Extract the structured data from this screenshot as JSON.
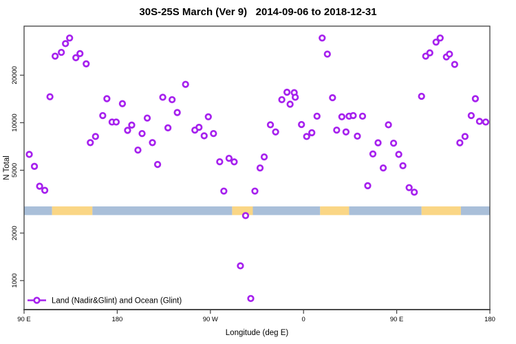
{
  "chart_data": {
    "type": "scatter",
    "title": "30S-25S March (Ver 9)   2014-09-06 to 2018-12-31",
    "xlabel": "Longitude (deg E)",
    "ylabel": "N Total",
    "grid": false,
    "x_scale": "linear",
    "y_scale": "log",
    "xlim": [
      90,
      540
    ],
    "ylim": [
      655,
      40900
    ],
    "x_ticks": [
      {
        "value": 90,
        "label": "90 E"
      },
      {
        "value": 180,
        "label": "180"
      },
      {
        "value": 270,
        "label": "90 W"
      },
      {
        "value": 360,
        "label": "0"
      },
      {
        "value": 450,
        "label": "90 E"
      },
      {
        "value": 540,
        "label": "180"
      }
    ],
    "y_ticks": [
      {
        "value": 1000,
        "label": "1000"
      },
      {
        "value": 2000,
        "label": "2000"
      },
      {
        "value": 5000,
        "label": "5000"
      },
      {
        "value": 10000,
        "label": "10000"
      },
      {
        "value": 20000,
        "label": "20000"
      }
    ],
    "legend": {
      "label": "Land (Nadir&Glint) and Ocean (Glint)",
      "position": "bottom-left",
      "marker": "open-circle-on-line"
    },
    "colors": {
      "point": "#A621EE",
      "ocean_band": "#A9BFD9",
      "land_band": "#FAD685",
      "axis": "#404040",
      "text": "#000000"
    },
    "land_ocean_band": {
      "description": "land/ocean strip along longitude",
      "y_top": 2950,
      "y_bottom": 2600,
      "segments": [
        {
          "from": 90,
          "to": 117,
          "type": "ocean"
        },
        {
          "from": 117,
          "to": 156,
          "type": "land"
        },
        {
          "from": 156,
          "to": 291,
          "type": "ocean"
        },
        {
          "from": 291,
          "to": 311,
          "type": "land"
        },
        {
          "from": 311,
          "to": 376,
          "type": "ocean"
        },
        {
          "from": 376,
          "to": 404,
          "type": "land"
        },
        {
          "from": 404,
          "to": 474,
          "type": "ocean"
        },
        {
          "from": 474,
          "to": 512,
          "type": "land"
        },
        {
          "from": 512,
          "to": 540,
          "type": "ocean"
        }
      ]
    },
    "series": [
      {
        "name": "Land (Nadir&Glint) and Ocean (Glint)",
        "marker": "open-circle",
        "points": [
          [
            120,
            26400
          ],
          [
            126,
            27900
          ],
          [
            130,
            31700
          ],
          [
            134,
            34400
          ],
          [
            140,
            25800
          ],
          [
            144,
            27400
          ],
          [
            150,
            23600
          ],
          [
            115,
            14600
          ],
          [
            166,
            11100
          ],
          [
            159,
            8180
          ],
          [
            154,
            7480
          ],
          [
            95,
            6300
          ],
          [
            100,
            5290
          ],
          [
            105,
            3960
          ],
          [
            110,
            3730
          ],
          [
            170,
            14200
          ],
          [
            185,
            13200
          ],
          [
            175,
            10100
          ],
          [
            179,
            10100
          ],
          [
            190,
            8950
          ],
          [
            194,
            9660
          ],
          [
            204,
            8540
          ],
          [
            209,
            10700
          ],
          [
            224,
            14500
          ],
          [
            233,
            14000
          ],
          [
            238,
            11600
          ],
          [
            246,
            17500
          ],
          [
            229,
            9280
          ],
          [
            214,
            7480
          ],
          [
            200,
            6710
          ],
          [
            219,
            5440
          ],
          [
            268,
            10900
          ],
          [
            255,
            8980
          ],
          [
            259,
            9350
          ],
          [
            264,
            8260
          ],
          [
            273,
            8540
          ],
          [
            279,
            5660
          ],
          [
            288,
            5950
          ],
          [
            293,
            5650
          ],
          [
            322,
            6070
          ],
          [
            318,
            5170
          ],
          [
            283,
            3690
          ],
          [
            313,
            3690
          ],
          [
            304,
            2580
          ],
          [
            299,
            1240
          ],
          [
            309,
            770
          ],
          [
            378,
            34400
          ],
          [
            383,
            27200
          ],
          [
            344,
            15600
          ],
          [
            351,
            15500
          ],
          [
            339,
            14000
          ],
          [
            352,
            14500
          ],
          [
            347,
            13100
          ],
          [
            388,
            14400
          ],
          [
            373,
            11000
          ],
          [
            397,
            10900
          ],
          [
            404,
            11000
          ],
          [
            358,
            9740
          ],
          [
            328,
            9700
          ],
          [
            333,
            8740
          ],
          [
            363,
            8180
          ],
          [
            368,
            8640
          ],
          [
            392,
            8980
          ],
          [
            401,
            8740
          ],
          [
            408,
            11100
          ],
          [
            417,
            11000
          ],
          [
            442,
            9700
          ],
          [
            412,
            8220
          ],
          [
            432,
            7460
          ],
          [
            447,
            7420
          ],
          [
            427,
            6340
          ],
          [
            452,
            6300
          ],
          [
            437,
            5170
          ],
          [
            456,
            5340
          ],
          [
            422,
            3990
          ],
          [
            462,
            3880
          ],
          [
            467,
            3630
          ],
          [
            492,
            34400
          ],
          [
            488,
            32400
          ],
          [
            482,
            27700
          ],
          [
            478,
            26400
          ],
          [
            498,
            26100
          ],
          [
            501,
            27200
          ],
          [
            506,
            23400
          ],
          [
            474,
            14700
          ],
          [
            526,
            14200
          ],
          [
            522,
            11100
          ],
          [
            530,
            10200
          ],
          [
            536,
            10100
          ],
          [
            516,
            8180
          ],
          [
            511,
            7460
          ]
        ]
      }
    ]
  }
}
